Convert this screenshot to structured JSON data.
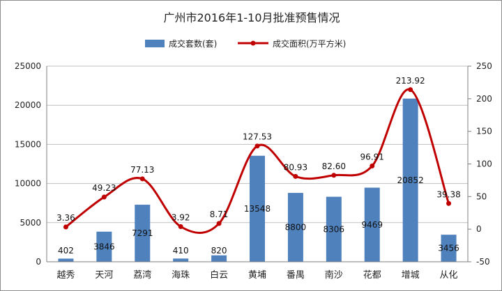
{
  "chart_data": {
    "type": "bar+line",
    "title": "广州市2016年1-10月批准预售情况",
    "categories": [
      "越秀",
      "天河",
      "荔湾",
      "海珠",
      "白云",
      "黄埔",
      "番禺",
      "南沙",
      "花都",
      "增城",
      "从化"
    ],
    "series": [
      {
        "name": "成交套数(套)",
        "type": "bar",
        "axis": "left",
        "color": "#4f81bd",
        "values": [
          402,
          3846,
          7291,
          410,
          820,
          13548,
          8800,
          8306,
          9469,
          20852,
          3456
        ],
        "labels": [
          "402",
          "3846",
          "7291",
          "410",
          "820",
          "13548",
          "8800",
          "8306",
          "9469",
          "20852",
          "3456"
        ]
      },
      {
        "name": "成交面积(万平方米)",
        "type": "line",
        "axis": "right",
        "color": "#c00000",
        "smooth": true,
        "values": [
          3.36,
          49.23,
          77.13,
          3.92,
          8.71,
          127.53,
          80.93,
          82.6,
          96.91,
          213.92,
          39.38
        ],
        "labels": [
          "3.36",
          "49.23",
          "77.13",
          "3.92",
          "8.71",
          "127.53",
          "80.93",
          "82.60",
          "96.91",
          "213.92",
          "39.38"
        ]
      }
    ],
    "y_left": {
      "range": [
        0,
        25000
      ],
      "ticks": [
        "0",
        "5000",
        "10000",
        "15000",
        "20000",
        "25000"
      ]
    },
    "y_right": {
      "range": [
        -50,
        250
      ],
      "ticks": [
        "-50",
        "0",
        "50",
        "100",
        "150",
        "200",
        "250"
      ]
    },
    "grid": true,
    "legend_position": "top"
  }
}
